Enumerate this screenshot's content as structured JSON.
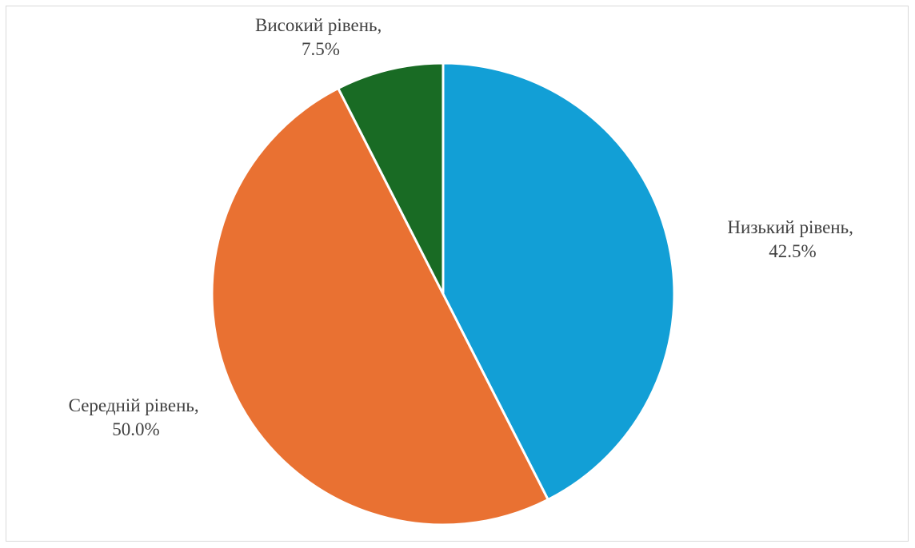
{
  "chart_data": {
    "type": "pie",
    "title": "",
    "categories": [
      "Низький рівень",
      "Середній рівень",
      "Високий рівень"
    ],
    "values": [
      42.5,
      50.0,
      7.5
    ],
    "unit": "%",
    "colors": [
      "#129fd6",
      "#e97132",
      "#196b24"
    ],
    "labels": [
      {
        "name": "Низький рівень,",
        "value": "42.5%"
      },
      {
        "name": "Середній рівень,",
        "value": "50.0%"
      },
      {
        "name": "Високий рівень,",
        "value": "7.5%"
      }
    ],
    "legend": "none",
    "start_angle": "12 o'clock",
    "direction": "clockwise"
  }
}
